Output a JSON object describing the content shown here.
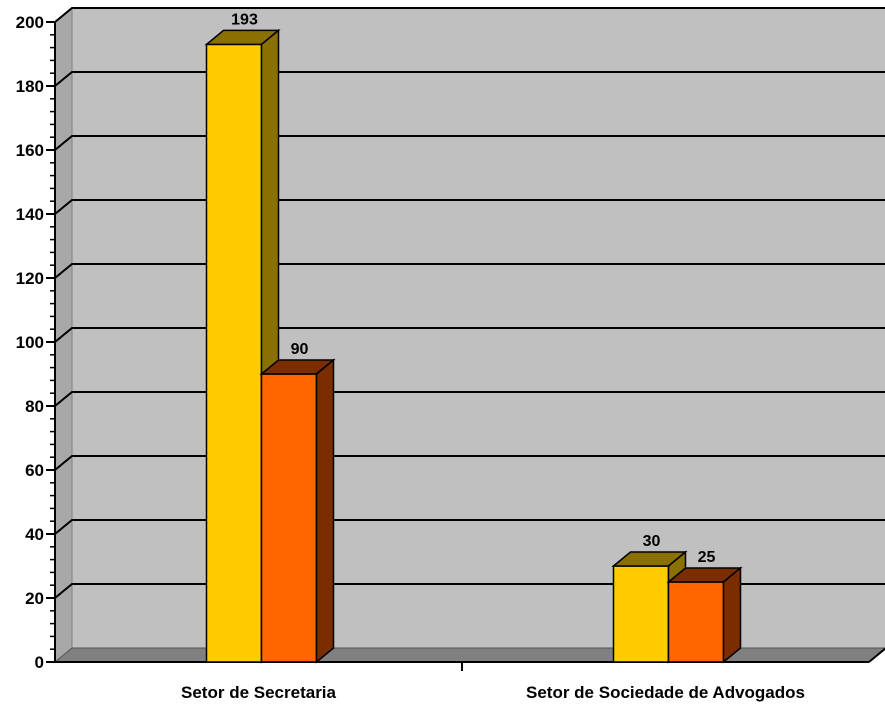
{
  "chart_data": {
    "type": "bar",
    "style": "3d-clustered-column",
    "categories": [
      "Setor de Secretaria",
      "Setor de Sociedade de Advogados"
    ],
    "series": [
      {
        "values": [
          193,
          30
        ],
        "color": "#FFCC00",
        "shade": "#8A7000"
      },
      {
        "values": [
          90,
          25
        ],
        "color": "#FF6600",
        "shade": "#7A2E00"
      }
    ],
    "ylim": [
      0,
      200
    ],
    "ytick_step": 20,
    "yticks": [
      "0",
      "20",
      "40",
      "60",
      "80",
      "100",
      "120",
      "140",
      "160",
      "180",
      "200"
    ],
    "data_labels": [
      [
        "193",
        "30"
      ],
      [
        "90",
        "25"
      ]
    ],
    "grid": true,
    "legend": "none",
    "wall_color": "#C0C0C0",
    "floor_color": "#808080"
  }
}
